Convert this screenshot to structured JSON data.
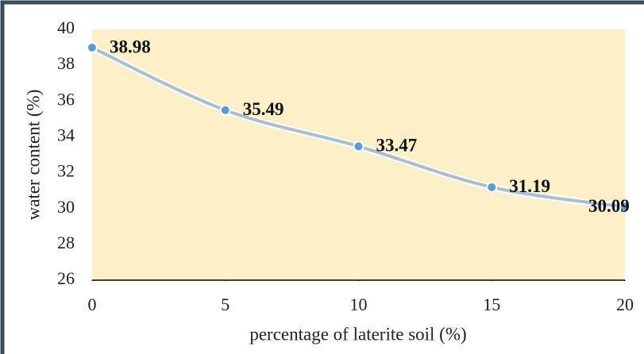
{
  "chart_data": {
    "type": "line",
    "x_label": "percentage of laterite soil (%)",
    "y_label": "water content (%)",
    "x": [
      0,
      5,
      10,
      15,
      20
    ],
    "series": [
      {
        "name": "water content",
        "color": "#5b9bd5",
        "values": [
          38.98,
          35.49,
          33.47,
          31.19,
          30.09
        ]
      }
    ],
    "xlim": [
      0,
      20
    ],
    "xticks": [
      0,
      5,
      10,
      15,
      20
    ],
    "ylim": [
      26,
      40
    ],
    "yticks": [
      26,
      28,
      30,
      32,
      34,
      36,
      38,
      40
    ],
    "grid": false
  }
}
